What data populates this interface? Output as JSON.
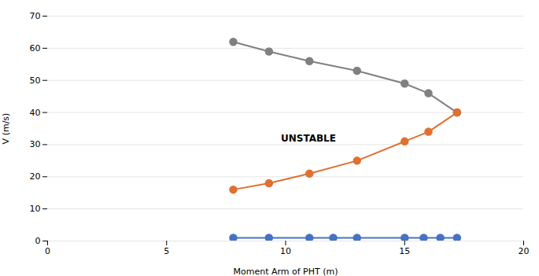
{
  "chart_data": {
    "type": "line",
    "xlabel": "Moment Arm of PHT (m)",
    "ylabel": "V (m/s)",
    "xlim": [
      0,
      20
    ],
    "ylim": [
      0,
      70
    ],
    "xticks": [
      0,
      5,
      10,
      15,
      20
    ],
    "yticks": [
      0,
      10,
      20,
      30,
      40,
      50,
      60,
      70
    ],
    "grid": "y",
    "marker": "circle",
    "series": [
      {
        "color": "#808080",
        "x": [
          7.8,
          9.3,
          11.0,
          13.0,
          15.0,
          16.0,
          17.2
        ],
        "values": [
          62.0,
          59.0,
          56.0,
          53.0,
          49.0,
          46.0,
          40.0
        ]
      },
      {
        "color": "#E07030",
        "x": [
          7.8,
          9.3,
          11.0,
          13.0,
          15.0,
          16.0,
          17.2
        ],
        "values": [
          16.0,
          18.0,
          21.0,
          25.0,
          31.0,
          34.0,
          40.0
        ]
      },
      {
        "color": "#4472C4",
        "x": [
          7.8,
          9.3,
          11.0,
          12.0,
          13.0,
          15.0,
          15.8,
          16.5,
          17.2
        ],
        "values": [
          1.0,
          1.0,
          1.0,
          1.0,
          1.0,
          1.0,
          1.0,
          1.0,
          1.0
        ]
      }
    ],
    "annotations": [
      {
        "text": "UNSTABLE",
        "x": 9.8,
        "y": 32.0
      }
    ]
  }
}
